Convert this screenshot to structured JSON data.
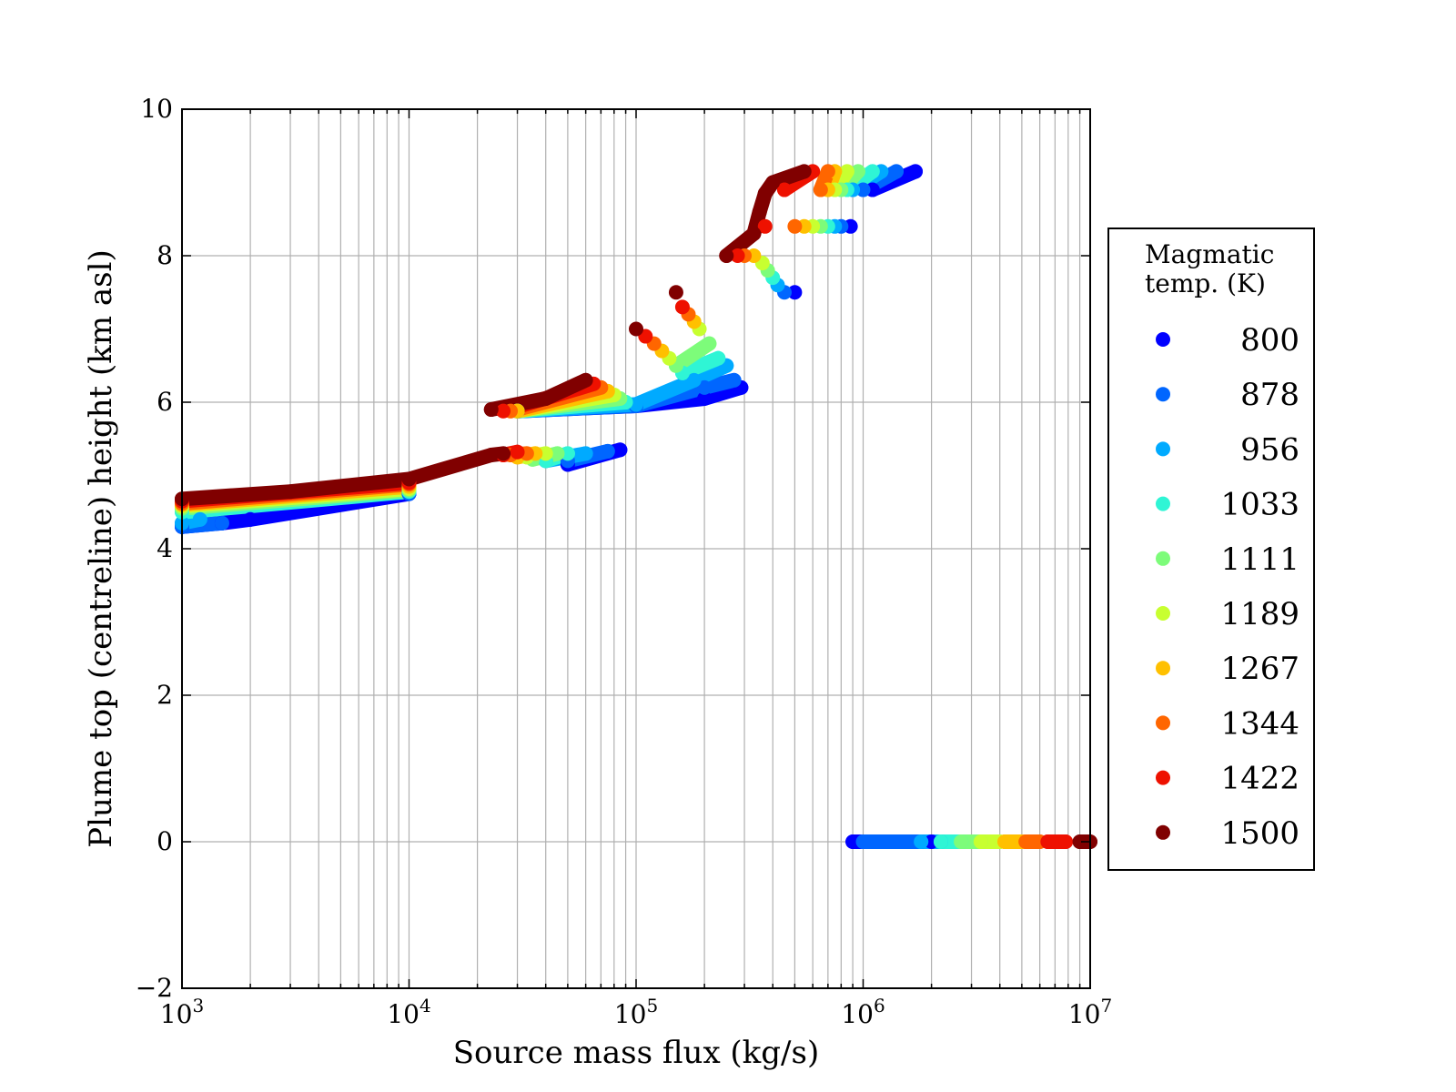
{
  "chart_data": {
    "type": "scatter",
    "title": "",
    "xlabel": "Source mass flux (kg/s)",
    "ylabel": "Plume top (centreline) height (km asl)",
    "xscale": "log",
    "xlim": [
      1000,
      10000000
    ],
    "ylim": [
      -2,
      10
    ],
    "x_ticks": [
      {
        "base": "10",
        "exp": "3"
      },
      {
        "base": "10",
        "exp": "4"
      },
      {
        "base": "10",
        "exp": "5"
      },
      {
        "base": "10",
        "exp": "6"
      },
      {
        "base": "10",
        "exp": "7"
      }
    ],
    "y_ticks": [
      "−2",
      "0",
      "2",
      "4",
      "6",
      "8",
      "10"
    ],
    "y_tick_values": [
      -2,
      0,
      2,
      4,
      6,
      8,
      10
    ],
    "grid": true,
    "legend": {
      "title_lines": [
        "Magmatic",
        "temp. (K)"
      ],
      "placement": "outside-right",
      "entries": [
        {
          "label": "800",
          "color": "#0000ff"
        },
        {
          "label": "878",
          "color": "#0066ff"
        },
        {
          "label": "956",
          "color": "#00aaff"
        },
        {
          "label": "1033",
          "color": "#2ff5d5"
        },
        {
          "label": "1111",
          "color": "#7dfc7a"
        },
        {
          "label": "1189",
          "color": "#c8ff30"
        },
        {
          "label": "1267",
          "color": "#ffc000"
        },
        {
          "label": "1344",
          "color": "#ff6600"
        },
        {
          "label": "1422",
          "color": "#ee1100"
        },
        {
          "label": "1500",
          "color": "#800000"
        }
      ]
    },
    "series": [
      {
        "name": "800",
        "x": [
          1000,
          1500,
          2000,
          10000,
          50000,
          85000,
          30000,
          100000,
          200000,
          290000,
          500000,
          880000,
          1100000,
          1700000,
          900000,
          2000000
        ],
        "y": [
          4.3,
          4.35,
          4.4,
          4.75,
          5.15,
          5.35,
          5.88,
          5.95,
          6.05,
          6.2,
          7.5,
          8.4,
          8.9,
          9.15,
          0.0,
          0.0
        ]
      },
      {
        "name": "878",
        "x": [
          1000,
          1500,
          10000,
          50000,
          75000,
          30000,
          100000,
          200000,
          270000,
          450000,
          800000,
          1000000,
          1400000,
          1000000,
          1800000
        ],
        "y": [
          4.3,
          4.35,
          4.75,
          5.2,
          5.33,
          5.88,
          5.95,
          6.2,
          6.3,
          7.5,
          8.4,
          8.9,
          9.15,
          0.0,
          0.0
        ]
      },
      {
        "name": "956",
        "x": [
          1000,
          1200,
          10000,
          40000,
          60000,
          30000,
          100000,
          180000,
          250000,
          420000,
          750000,
          900000,
          1200000,
          1800000,
          2200000
        ],
        "y": [
          4.35,
          4.4,
          4.78,
          5.2,
          5.3,
          5.88,
          5.97,
          6.3,
          6.5,
          7.6,
          8.4,
          8.9,
          9.15,
          0.0,
          0.0
        ]
      },
      {
        "name": "1033",
        "x": [
          1000,
          10000,
          40000,
          50000,
          30000,
          90000,
          160000,
          230000,
          400000,
          700000,
          850000,
          1100000,
          2200000,
          2700000
        ],
        "y": [
          4.5,
          4.78,
          5.2,
          5.3,
          5.88,
          6.0,
          6.4,
          6.6,
          7.7,
          8.4,
          8.9,
          9.15,
          0.0,
          0.0
        ]
      },
      {
        "name": "1111",
        "x": [
          1000,
          10000,
          35000,
          45000,
          30000,
          85000,
          150000,
          210000,
          380000,
          650000,
          800000,
          950000,
          2700000,
          3300000
        ],
        "y": [
          4.55,
          4.8,
          5.22,
          5.3,
          5.88,
          6.05,
          6.5,
          6.8,
          7.8,
          8.4,
          8.9,
          9.15,
          0.0,
          0.0
        ]
      },
      {
        "name": "1189",
        "x": [
          1000,
          10000,
          33000,
          40000,
          30000,
          80000,
          140000,
          190000,
          360000,
          600000,
          750000,
          850000,
          3300000,
          4000000
        ],
        "y": [
          4.58,
          4.82,
          5.25,
          5.3,
          5.88,
          6.1,
          6.6,
          7.0,
          7.9,
          8.4,
          8.9,
          9.15,
          0.0,
          0.0
        ]
      },
      {
        "name": "1267",
        "x": [
          1000,
          10000,
          30000,
          36000,
          30000,
          75000,
          130000,
          180000,
          330000,
          550000,
          700000,
          750000,
          4200000,
          5000000
        ],
        "y": [
          4.6,
          4.85,
          5.25,
          5.3,
          5.88,
          6.15,
          6.7,
          7.1,
          8.0,
          8.4,
          8.9,
          9.15,
          0.0,
          0.0
        ]
      },
      {
        "name": "1344",
        "x": [
          1000,
          10000,
          28000,
          33000,
          28000,
          70000,
          120000,
          170000,
          300000,
          500000,
          650000,
          700000,
          5200000,
          6000000
        ],
        "y": [
          4.62,
          4.88,
          5.28,
          5.3,
          5.88,
          6.2,
          6.8,
          7.2,
          8.0,
          8.4,
          8.9,
          9.15,
          0.0,
          0.0
        ]
      },
      {
        "name": "1422",
        "x": [
          1000,
          10000,
          26000,
          30000,
          26000,
          65000,
          110000,
          160000,
          280000,
          370000,
          450000,
          600000,
          6500000,
          7800000
        ],
        "y": [
          4.65,
          4.9,
          5.28,
          5.32,
          5.88,
          6.25,
          6.9,
          7.3,
          8.0,
          8.4,
          8.9,
          9.15,
          0.0,
          0.0
        ]
      },
      {
        "name": "1500",
        "x": [
          1000,
          3000,
          10000,
          23000,
          26000,
          23000,
          40000,
          60000,
          100000,
          150000,
          250000,
          330000,
          350000,
          370000,
          400000,
          550000,
          9000000,
          10000000
        ],
        "y": [
          4.68,
          4.78,
          4.95,
          5.28,
          5.3,
          5.9,
          6.05,
          6.3,
          7.0,
          7.5,
          8.0,
          8.3,
          8.6,
          8.85,
          9.0,
          9.15,
          0.0,
          0.0
        ]
      }
    ]
  }
}
